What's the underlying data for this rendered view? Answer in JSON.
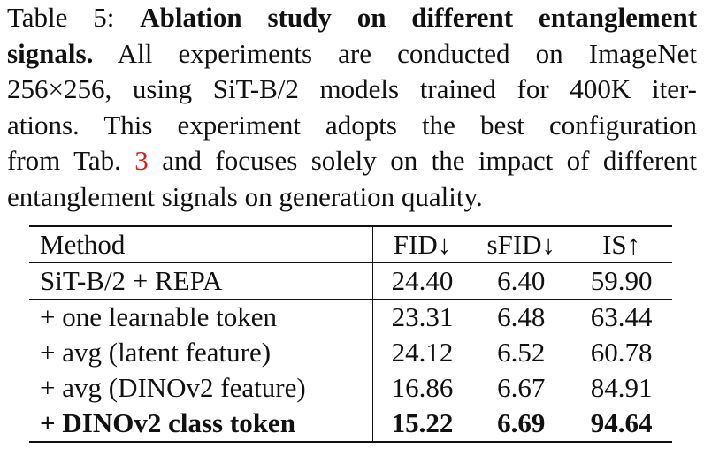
{
  "caption": {
    "label": "Table 5:",
    "title_line1": "Ablation study on different entanglement",
    "title_line2": "signals.",
    "text_line2": "All experiments are conducted on ImageNet",
    "text_line3": "256×256, using SiT-B/2 models trained for 400K iter-",
    "text_line4": "ations. This experiment adopts the best configuration",
    "text_line5_a": "from Tab.",
    "text_line5_ref": "3",
    "text_line5_b": "and focuses solely on the impact of different",
    "text_line6": "entanglement signals on generation quality."
  },
  "table": {
    "headers": [
      "Method",
      "FID↓",
      "sFID↓",
      "IS↑"
    ],
    "rows": [
      {
        "method": "SiT-B/2 + REPA",
        "fid": "24.40",
        "sfid": "6.40",
        "is": "59.90"
      },
      {
        "method": "+ one learnable token",
        "fid": "23.31",
        "sfid": "6.48",
        "is": "63.44"
      },
      {
        "method": "+ avg (latent feature)",
        "fid": "24.12",
        "sfid": "6.52",
        "is": "60.78"
      },
      {
        "method": "+ avg (DINOv2 feature)",
        "fid": "16.86",
        "sfid": "6.67",
        "is": "84.91"
      },
      {
        "method": "+ DINOv2 class token",
        "fid": "15.22",
        "sfid": "6.69",
        "is": "94.64"
      }
    ]
  }
}
